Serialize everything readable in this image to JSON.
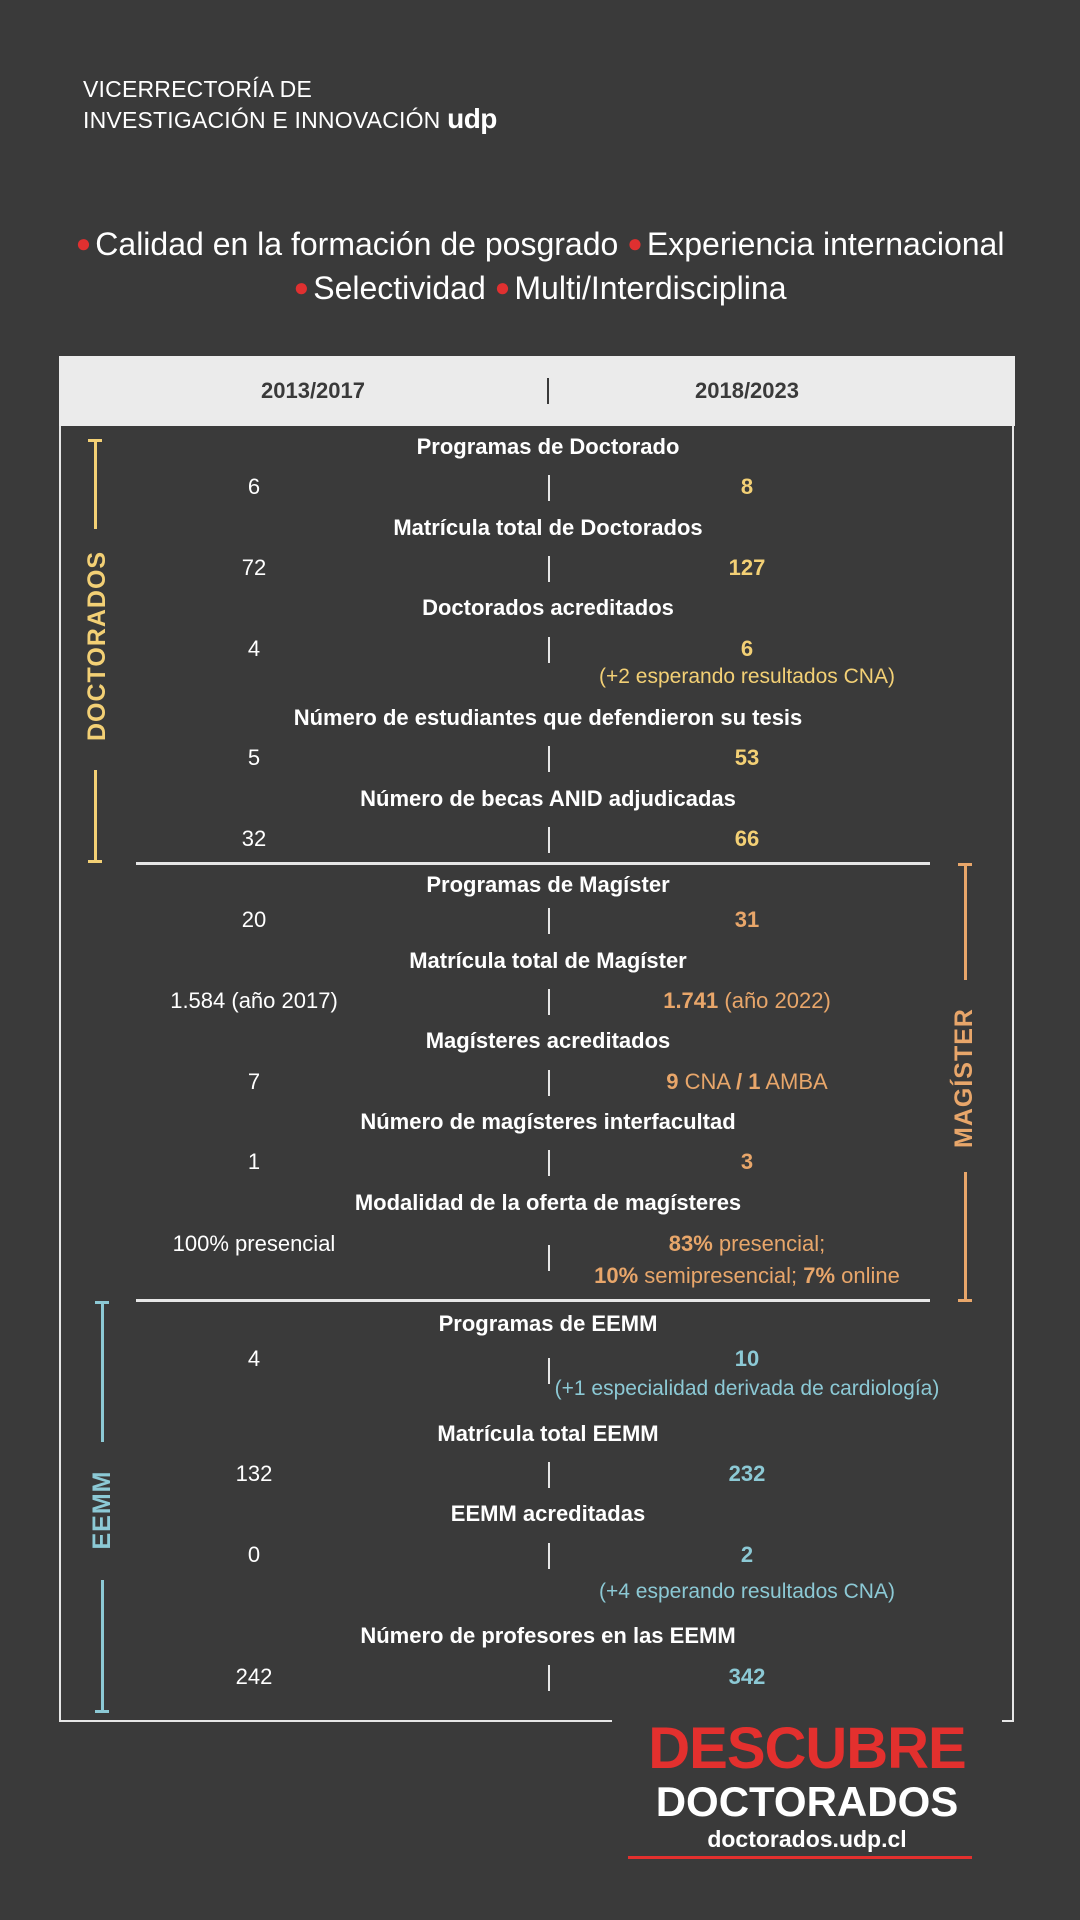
{
  "header": {
    "line1": "VICERRECTORÍA DE",
    "line2": "INVESTIGACIÓN E INNOVACIÓN",
    "brand": "udp"
  },
  "pillars": {
    "item1": "Calidad en la formación de posgrado",
    "item2": "Experiencia internacional",
    "item3": "Selectividad",
    "item4": "Multi/Interdisciplina"
  },
  "table": {
    "col_left": "2013/2017",
    "col_right": "2018/2023"
  },
  "sections": {
    "doctorados": "DOCTORADOS",
    "magister": "MAGÍSTER",
    "eemm": "EEMM"
  },
  "rows": {
    "r1": {
      "label": "Programas de Doctorado",
      "left": "6",
      "right": "8"
    },
    "r2": {
      "label": "Matrícula total de Doctorados",
      "left": "72",
      "right": "127"
    },
    "r3": {
      "label": "Doctorados acreditados",
      "left": "4",
      "right": "6",
      "note": "(+2 esperando resultados CNA)"
    },
    "r4": {
      "label": "Número de estudiantes que defendieron su tesis",
      "left": "5",
      "right": "53"
    },
    "r5": {
      "label": "Número de becas ANID adjudicadas",
      "left": "32",
      "right": "66"
    },
    "r6": {
      "label": "Programas de Magíster",
      "left": "20",
      "right": "31"
    },
    "r7": {
      "label": "Matrícula total de Magíster",
      "left": "1.584 (año 2017)",
      "right_bold": "1.741",
      "right_rest": " (año 2022)"
    },
    "r8": {
      "label": "Magísteres acreditados",
      "left": "7",
      "right_b1": "9",
      "right_t1": " CNA ",
      "right_b2": "/ 1",
      "right_t2": " AMBA"
    },
    "r9": {
      "label": "Número de magísteres interfacultad",
      "left": "1",
      "right": "3"
    },
    "r10": {
      "label": "Modalidad de la oferta de magísteres",
      "left": "100% presencial",
      "right_b1": "83%",
      "right_t1": " presencial;",
      "right_b2": "10%",
      "right_t2": " semipresencial; ",
      "right_b3": "7%",
      "right_t3": " online"
    },
    "r11": {
      "label": "Programas de EEMM",
      "left": "4",
      "right": "10",
      "note": "(+1 especialidad derivada de cardiología)"
    },
    "r12": {
      "label": "Matrícula total EEMM",
      "left": "132",
      "right": "232"
    },
    "r13": {
      "label": "EEMM acreditadas",
      "left": "0",
      "right": "2",
      "note": "(+4 esperando resultados CNA)"
    },
    "r14": {
      "label": "Número de profesores en las EEMM",
      "left": "242",
      "right": "342"
    }
  },
  "cta": {
    "line1": "DESCUBRE",
    "line2": "DOCTORADOS",
    "url": "doctorados.udp.cl"
  },
  "colors": {
    "background": "#3a3a3a",
    "doctorados": "#f3d075",
    "magister": "#e8a66a",
    "eemm": "#8cc9d5",
    "accent_red": "#e3302e"
  }
}
